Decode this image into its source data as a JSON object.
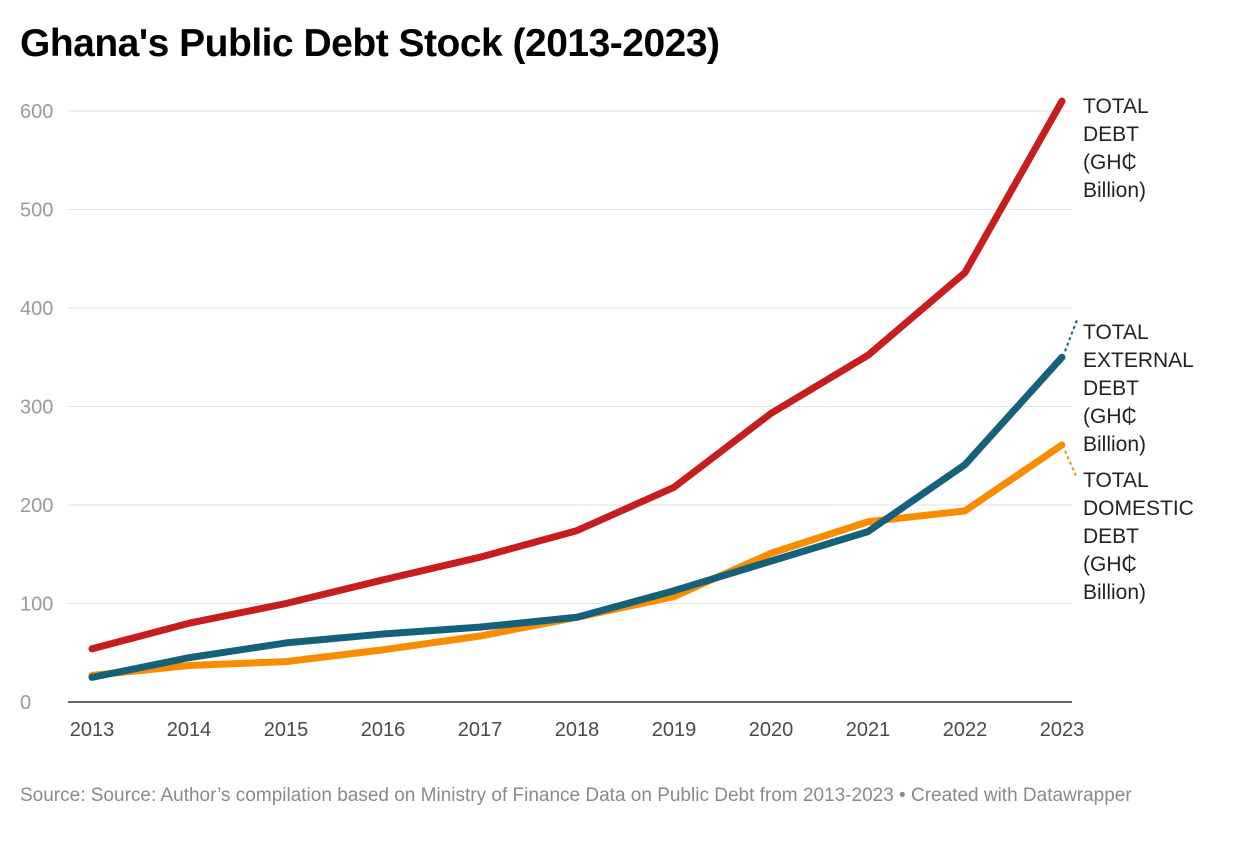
{
  "chart_data": {
    "type": "line",
    "title": "Ghana's Public Debt Stock (2013-2023)",
    "xlabel": "",
    "ylabel": "",
    "ylim": [
      0,
      600
    ],
    "yticks": [
      0,
      100,
      200,
      300,
      400,
      500,
      600
    ],
    "grid": true,
    "x": [
      "2013",
      "2014",
      "2015",
      "2016",
      "2017",
      "2018",
      "2019",
      "2020",
      "2021",
      "2022",
      "2023"
    ],
    "series": [
      {
        "name": "TOTAL DEBT (GH₵ Billion)",
        "label_lines": [
          "TOTAL",
          "DEBT",
          "(GH₵",
          "Billion)"
        ],
        "color": "#c71e1d",
        "values": [
          54,
          80,
          100,
          124,
          147,
          174,
          218,
          293,
          352,
          436,
          610
        ]
      },
      {
        "name": "TOTAL EXTERNAL DEBT (GH₵ Billion)",
        "label_lines": [
          "TOTAL",
          "EXTERNAL",
          "DEBT",
          "(GH₵",
          "Billion)"
        ],
        "color": "#15607a",
        "values": [
          25,
          45,
          60,
          69,
          76,
          86,
          113,
          143,
          173,
          241,
          350
        ]
      },
      {
        "name": "TOTAL DOMESTIC DEBT (GH₵ Billion)",
        "label_lines": [
          "TOTAL",
          "DOMESTIC",
          "DEBT",
          "(GH₵",
          "Billion)"
        ],
        "color": "#fa8c00",
        "values": [
          27,
          37,
          41,
          53,
          67,
          86,
          107,
          151,
          183,
          194,
          261
        ]
      }
    ]
  },
  "source": "Source: Source: Author’s compilation based on Ministry of Finance Data on Public Debt from 2013-2023 • Created with Datawrapper"
}
